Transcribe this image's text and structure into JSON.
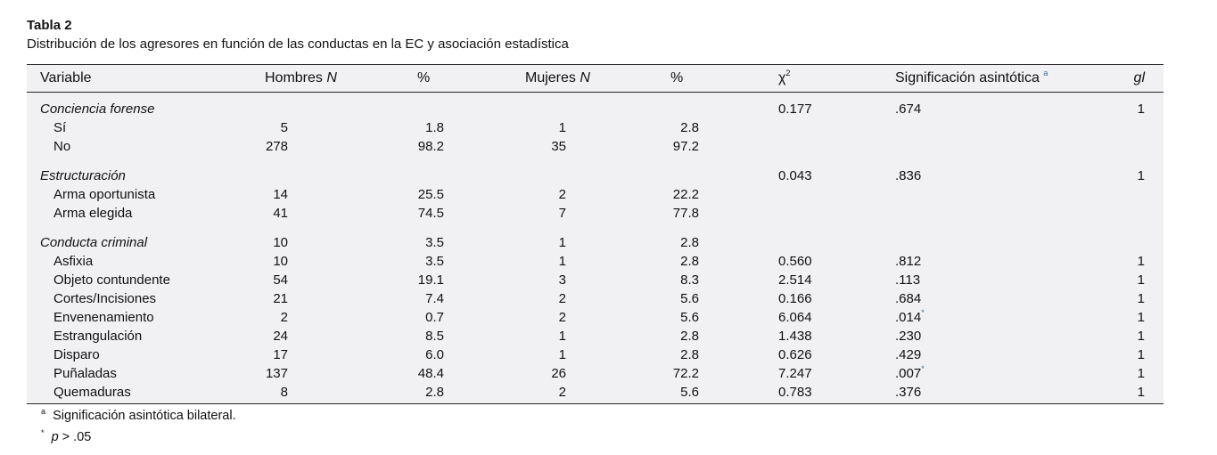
{
  "title": "Tabla 2",
  "caption": "Distribución de los agresores en función de las conductas en la EC y asociación estadística",
  "headers": {
    "variable": "Variable",
    "hombres": "Hombres",
    "n": "N",
    "pct": "%",
    "mujeres": "Mujeres",
    "chi": "χ",
    "chi_exp": "2",
    "sig": "Significación asintótica",
    "sig_mark": "a",
    "gl": "gl"
  },
  "groups": [
    {
      "label": "Conciencia forense",
      "chi": "0.177",
      "sig": ".674",
      "gl": "1",
      "rows": [
        {
          "label": "Sí",
          "hn": "5",
          "hp": "1.8",
          "mn": "1",
          "mp": "2.8"
        },
        {
          "label": "No",
          "hn": "278",
          "hp": "98.2",
          "mn": "35",
          "mp": "97.2"
        }
      ]
    },
    {
      "label": "Estructuración",
      "chi": "0.043",
      "sig": ".836",
      "gl": "1",
      "rows": [
        {
          "label": "Arma oportunista",
          "hn": "14",
          "hp": "25.5",
          "mn": "2",
          "mp": "22.2"
        },
        {
          "label": "Arma elegida",
          "hn": "41",
          "hp": "74.5",
          "mn": "7",
          "mp": "77.8"
        }
      ]
    },
    {
      "label": "Conducta criminal",
      "hn": "10",
      "hp": "3.5",
      "mn": "1",
      "mp": "2.8",
      "rows": [
        {
          "label": "Asfixia",
          "hn": "10",
          "hp": "3.5",
          "mn": "1",
          "mp": "2.8",
          "chi": "0.560",
          "sig": ".812",
          "gl": "1"
        },
        {
          "label": "Objeto contundente",
          "hn": "54",
          "hp": "19.1",
          "mn": "3",
          "mp": "8.3",
          "chi": "2.514",
          "sig": ".113",
          "gl": "1"
        },
        {
          "label": "Cortes/Incisiones",
          "hn": "21",
          "hp": "7.4",
          "mn": "2",
          "mp": "5.6",
          "chi": "0.166",
          "sig": ".684",
          "gl": "1"
        },
        {
          "label": "Envenenamiento",
          "hn": "2",
          "hp": "0.7",
          "mn": "2",
          "mp": "5.6",
          "chi": "6.064",
          "sig": ".014",
          "sig_mark": "*",
          "gl": "1"
        },
        {
          "label": "Estrangulación",
          "hn": "24",
          "hp": "8.5",
          "mn": "1",
          "mp": "2.8",
          "chi": "1.438",
          "sig": ".230",
          "gl": "1"
        },
        {
          "label": "Disparo",
          "hn": "17",
          "hp": "6.0",
          "mn": "1",
          "mp": "2.8",
          "chi": "0.626",
          "sig": ".429",
          "gl": "1"
        },
        {
          "label": "Puñaladas",
          "hn": "137",
          "hp": "48.4",
          "mn": "26",
          "mp": "72.2",
          "chi": "7.247",
          "sig": ".007",
          "sig_mark": "*",
          "gl": "1"
        },
        {
          "label": "Quemaduras",
          "hn": "8",
          "hp": "2.8",
          "mn": "2",
          "mp": "5.6",
          "chi": "0.783",
          "sig": ".376",
          "gl": "1"
        }
      ]
    }
  ],
  "footnotes": [
    {
      "mark": "a",
      "text": "Significación asintótica bilateral."
    },
    {
      "mark": "*",
      "p": "p",
      "text": " > .05"
    }
  ]
}
